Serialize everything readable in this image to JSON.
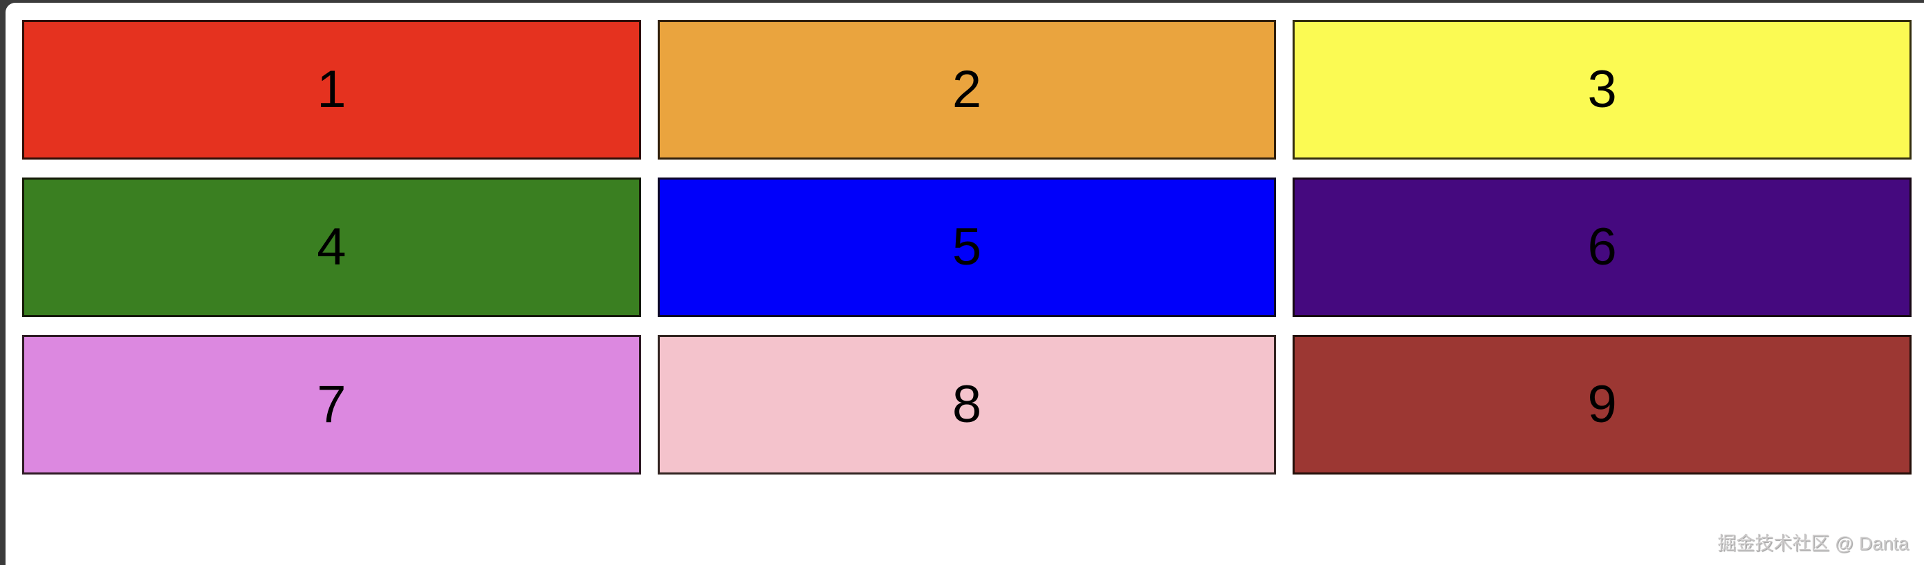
{
  "page": {
    "frame_color": "#3b3b3b",
    "panel_color": "#ffffff"
  },
  "grid": {
    "text_color": "#000000",
    "border_color": "rgba(15,8,2,0.85)",
    "items": [
      {
        "label": "1",
        "color": "#e5321f"
      },
      {
        "label": "2",
        "color": "#eaa43e"
      },
      {
        "label": "3",
        "color": "#fbfa53"
      },
      {
        "label": "4",
        "color": "#3a7f21"
      },
      {
        "label": "5",
        "color": "#0000fa"
      },
      {
        "label": "6",
        "color": "#45097f"
      },
      {
        "label": "7",
        "color": "#dc88e0"
      },
      {
        "label": "8",
        "color": "#f4c3cc"
      },
      {
        "label": "9",
        "color": "#9c3733"
      }
    ]
  },
  "watermark": {
    "text": "掘金技术社区 @ Danta",
    "color": "#c9c7c7"
  }
}
